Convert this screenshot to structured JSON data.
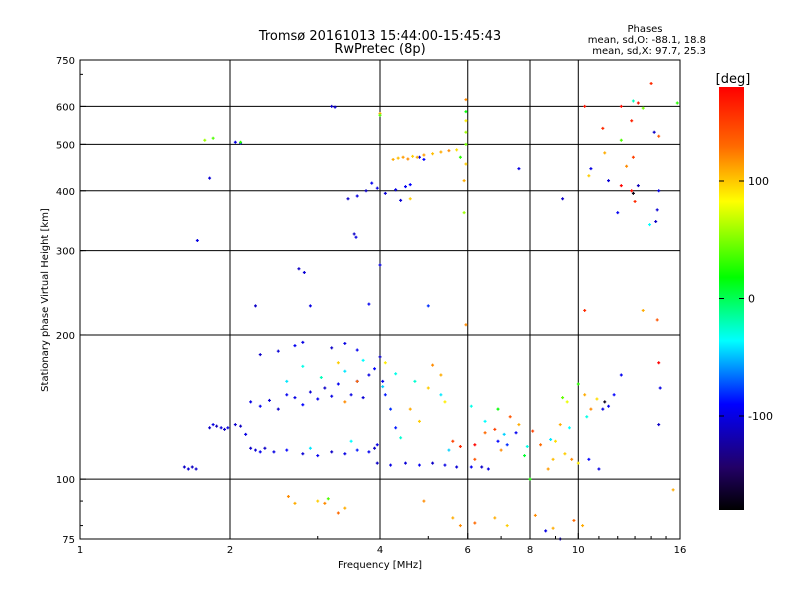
{
  "chart_data": {
    "type": "scatter",
    "title": "Tromsø 20161013 15:44:00-15:45:43",
    "subtitle": "RwPretec (8p)",
    "xlabel": "Frequency [MHz]",
    "ylabel": "Stationary phase Virtual Height [km]",
    "x_scale": "log",
    "y_scale": "log",
    "xlim": [
      1,
      16
    ],
    "ylim": [
      75,
      750
    ],
    "x_ticks": [
      1,
      2,
      4,
      6,
      8,
      10,
      16
    ],
    "x_tick_labels": [
      "1",
      "2",
      "4",
      "6",
      "8",
      "10",
      "16"
    ],
    "y_ticks": [
      75,
      100,
      200,
      300,
      400,
      500,
      600,
      750
    ],
    "y_tick_labels": [
      "75",
      "100",
      "200",
      "300",
      "400",
      "500",
      "600",
      "750"
    ],
    "grid": true,
    "stats": {
      "heading": "Phases",
      "line_o": "mean, sd,O: -88.1, 18.8",
      "line_x": "mean, sd,X:  97.7, 25.3"
    },
    "colorbar": {
      "label": "[deg]",
      "range": [
        -180,
        180
      ],
      "tick_values": [
        100,
        0,
        -100
      ],
      "tick_labels": [
        "100",
        "0",
        "-100"
      ],
      "colors": [
        "#ff0000",
        "#ff8000",
        "#ffff00",
        "#00ff00",
        "#00ffff",
        "#0000ff",
        "#1a0066",
        "#000000"
      ]
    },
    "series": [
      {
        "points": [
          [
            1.62,
            106,
            -110
          ],
          [
            1.65,
            105,
            -105
          ],
          [
            1.68,
            106,
            -112
          ],
          [
            1.71,
            105,
            -108
          ],
          [
            1.82,
            128,
            -110
          ],
          [
            1.85,
            130,
            -100
          ],
          [
            1.88,
            129,
            -115
          ],
          [
            1.92,
            128,
            -105
          ],
          [
            1.95,
            127,
            -110
          ],
          [
            1.98,
            128,
            -100
          ],
          [
            2.05,
            130,
            -108
          ],
          [
            2.1,
            129,
            -112
          ],
          [
            2.15,
            124,
            -100
          ],
          [
            2.2,
            116,
            -110
          ],
          [
            2.25,
            115,
            -105
          ],
          [
            2.3,
            114,
            -95
          ],
          [
            2.35,
            116,
            -110
          ],
          [
            2.45,
            114,
            -100
          ],
          [
            2.6,
            115,
            -90
          ],
          [
            2.8,
            113,
            -105
          ],
          [
            3.0,
            112,
            -95
          ],
          [
            3.2,
            114,
            -110
          ],
          [
            3.4,
            113,
            -100
          ],
          [
            3.6,
            115,
            -85
          ],
          [
            3.8,
            114,
            -95
          ],
          [
            3.9,
            116,
            -110
          ],
          [
            3.95,
            118,
            -100
          ],
          [
            2.2,
            145,
            -100
          ],
          [
            2.3,
            142,
            -95
          ],
          [
            2.4,
            146,
            -105
          ],
          [
            2.5,
            140,
            -110
          ],
          [
            2.6,
            150,
            -95
          ],
          [
            2.7,
            148,
            -100
          ],
          [
            2.8,
            143,
            -90
          ],
          [
            2.9,
            152,
            -105
          ],
          [
            3.0,
            147,
            -95
          ],
          [
            3.1,
            155,
            -110
          ],
          [
            3.2,
            149,
            -100
          ],
          [
            3.3,
            158,
            -95
          ],
          [
            3.5,
            150,
            -100
          ],
          [
            3.6,
            160,
            -90
          ],
          [
            3.7,
            148,
            -105
          ],
          [
            3.8,
            165,
            -100
          ],
          [
            2.3,
            182,
            -110
          ],
          [
            2.5,
            185,
            -105
          ],
          [
            2.7,
            190,
            -95
          ],
          [
            2.8,
            193,
            -100
          ],
          [
            3.2,
            188,
            -110
          ],
          [
            3.4,
            192,
            -100
          ],
          [
            3.6,
            186,
            -95
          ],
          [
            4.0,
            180,
            -110
          ],
          [
            3.9,
            170,
            -90
          ],
          [
            4.05,
            160,
            -95
          ],
          [
            4.1,
            150,
            -85
          ],
          [
            4.2,
            140,
            -80
          ],
          [
            4.3,
            128,
            -85
          ],
          [
            3.95,
            108,
            -110
          ],
          [
            4.2,
            107,
            -100
          ],
          [
            4.5,
            108,
            -105
          ],
          [
            4.8,
            107,
            -95
          ],
          [
            5.1,
            108,
            -110
          ],
          [
            5.4,
            107,
            -100
          ],
          [
            5.7,
            106,
            -105
          ],
          [
            6.1,
            106,
            -95
          ],
          [
            6.4,
            106,
            -110
          ],
          [
            6.6,
            105,
            -100
          ],
          [
            2.75,
            275,
            -110
          ],
          [
            2.82,
            270,
            -105
          ],
          [
            3.55,
            325,
            -110
          ],
          [
            3.58,
            320,
            -100
          ],
          [
            3.2,
            600,
            -110
          ],
          [
            3.25,
            598,
            -105
          ],
          [
            2.05,
            505,
            -100
          ],
          [
            2.1,
            503,
            -95
          ],
          [
            1.72,
            315,
            -100
          ],
          [
            1.82,
            425,
            -105
          ],
          [
            3.6,
            390,
            -100
          ],
          [
            3.75,
            400,
            -110
          ],
          [
            3.85,
            415,
            -95
          ],
          [
            3.95,
            405,
            -100
          ],
          [
            4.1,
            395,
            -105
          ],
          [
            4.3,
            402,
            -100
          ],
          [
            4.5,
            408,
            -95
          ],
          [
            4.6,
            412,
            -90
          ],
          [
            3.45,
            385,
            -110
          ],
          [
            4.4,
            382,
            -105
          ],
          [
            4.0,
            280,
            -100
          ],
          [
            2.25,
            230,
            -110
          ],
          [
            2.9,
            230,
            -100
          ],
          [
            3.8,
            232,
            -95
          ],
          [
            5.0,
            230,
            -80
          ],
          [
            6.9,
            120,
            -90
          ],
          [
            7.2,
            118,
            -80
          ],
          [
            7.5,
            125,
            -95
          ],
          [
            11.2,
            140,
            -100
          ],
          [
            11.5,
            142,
            -95
          ],
          [
            11.8,
            150,
            -90
          ],
          [
            12.2,
            165,
            -95
          ],
          [
            10.5,
            110,
            -90
          ],
          [
            11.0,
            105,
            -100
          ],
          [
            14.5,
            130,
            -110
          ],
          [
            14.6,
            155,
            -100
          ],
          [
            14.3,
            345,
            -110
          ],
          [
            14.4,
            365,
            -105
          ],
          [
            14.5,
            400,
            -100
          ],
          [
            14.2,
            530,
            -110
          ],
          [
            13.2,
            410,
            -115
          ],
          [
            12.0,
            360,
            -95
          ],
          [
            11.5,
            420,
            -105
          ],
          [
            10.6,
            445,
            -100
          ],
          [
            9.3,
            385,
            -110
          ],
          [
            7.6,
            445,
            -100
          ],
          [
            4.8,
            470,
            -100
          ],
          [
            4.9,
            465,
            -90
          ],
          [
            9.2,
            75,
            -110
          ],
          [
            8.6,
            78,
            -100
          ]
        ]
      },
      {
        "points": [
          [
            4.25,
            465,
            110
          ],
          [
            4.35,
            468,
            105
          ],
          [
            4.45,
            470,
            115
          ],
          [
            4.55,
            466,
            120
          ],
          [
            4.65,
            472,
            100
          ],
          [
            4.75,
            470,
            110
          ],
          [
            4.9,
            475,
            115
          ],
          [
            5.1,
            478,
            105
          ],
          [
            5.3,
            482,
            110
          ],
          [
            5.5,
            485,
            120
          ],
          [
            5.7,
            487,
            95
          ],
          [
            4.6,
            385,
            100
          ],
          [
            4.0,
            580,
            110
          ],
          [
            5.95,
            620,
            120
          ],
          [
            5.95,
            560,
            90
          ],
          [
            5.95,
            530,
            60
          ],
          [
            5.95,
            455,
            100
          ],
          [
            5.9,
            420,
            110
          ],
          [
            5.9,
            360,
            60
          ],
          [
            5.95,
            210,
            120
          ],
          [
            9.5,
            145,
            80
          ],
          [
            9.2,
            130,
            110
          ],
          [
            9.0,
            120,
            95
          ],
          [
            8.9,
            110,
            105
          ],
          [
            8.7,
            105,
            115
          ],
          [
            9.4,
            113,
            100
          ],
          [
            9.7,
            110,
            120
          ],
          [
            10.0,
            108,
            90
          ],
          [
            10.3,
            150,
            110
          ],
          [
            10.6,
            140,
            120
          ],
          [
            10.9,
            147,
            95
          ],
          [
            5.6,
            120,
            150
          ],
          [
            5.8,
            117,
            160
          ],
          [
            6.2,
            110,
            140
          ],
          [
            6.5,
            125,
            130
          ],
          [
            6.8,
            127,
            150
          ],
          [
            7.0,
            115,
            120
          ],
          [
            7.3,
            135,
            140
          ],
          [
            7.6,
            130,
            110
          ],
          [
            8.1,
            126,
            150
          ],
          [
            8.4,
            118,
            130
          ],
          [
            5.0,
            155,
            100
          ],
          [
            5.3,
            165,
            110
          ],
          [
            5.1,
            173,
            120
          ],
          [
            5.4,
            145,
            90
          ],
          [
            4.6,
            140,
            110
          ],
          [
            4.8,
            132,
            100
          ],
          [
            2.62,
            92,
            120
          ],
          [
            2.7,
            89,
            110
          ],
          [
            3.0,
            90,
            100
          ],
          [
            3.1,
            89,
            120
          ],
          [
            3.3,
            85,
            130
          ],
          [
            3.4,
            87,
            110
          ],
          [
            4.9,
            90,
            120
          ],
          [
            5.6,
            83,
            110
          ],
          [
            5.8,
            80,
            120
          ],
          [
            6.2,
            81,
            130
          ],
          [
            6.8,
            83,
            110
          ],
          [
            7.2,
            80,
            100
          ],
          [
            8.2,
            84,
            120
          ],
          [
            8.9,
            79,
            110
          ],
          [
            9.8,
            82,
            130
          ],
          [
            10.2,
            80,
            110
          ],
          [
            10.3,
            600,
            170
          ],
          [
            11.2,
            540,
            160
          ],
          [
            12.2,
            600,
            175
          ],
          [
            12.8,
            560,
            165
          ],
          [
            13.2,
            610,
            170
          ],
          [
            14.0,
            670,
            160
          ],
          [
            12.5,
            450,
            120
          ],
          [
            11.3,
            480,
            110
          ],
          [
            10.5,
            430,
            100
          ],
          [
            13.0,
            380,
            160
          ],
          [
            12.9,
            470,
            150
          ],
          [
            14.5,
            520,
            140
          ],
          [
            13.5,
            225,
            110
          ],
          [
            14.4,
            215,
            140
          ],
          [
            10.3,
            225,
            160
          ],
          [
            15.5,
            95,
            110
          ],
          [
            3.4,
            145,
            120
          ],
          [
            3.6,
            160,
            130
          ],
          [
            3.3,
            175,
            100
          ],
          [
            4.1,
            175,
            90
          ]
        ]
      },
      {
        "points": [
          [
            1.78,
            510,
            60
          ],
          [
            1.85,
            515,
            40
          ],
          [
            2.1,
            505,
            30
          ],
          [
            5.95,
            585,
            20
          ],
          [
            5.95,
            500,
            50
          ],
          [
            4.0,
            575,
            40
          ],
          [
            5.8,
            470,
            30
          ],
          [
            6.9,
            140,
            20
          ],
          [
            7.8,
            112,
            10
          ],
          [
            8.0,
            100,
            25
          ],
          [
            9.3,
            148,
            45
          ],
          [
            10.0,
            158,
            30
          ],
          [
            12.2,
            510,
            40
          ],
          [
            13.5,
            595,
            50
          ],
          [
            15.8,
            610,
            30
          ],
          [
            3.15,
            91,
            40
          ]
        ]
      },
      {
        "points": [
          [
            2.6,
            160,
            -40
          ],
          [
            2.8,
            172,
            -30
          ],
          [
            3.05,
            163,
            -20
          ],
          [
            3.4,
            168,
            -40
          ],
          [
            3.7,
            177,
            -35
          ],
          [
            4.05,
            156,
            -45
          ],
          [
            4.3,
            166,
            -30
          ],
          [
            4.7,
            160,
            -25
          ],
          [
            5.3,
            150,
            -40
          ],
          [
            6.1,
            142,
            -30
          ],
          [
            6.5,
            132,
            -35
          ],
          [
            7.1,
            124,
            -45
          ],
          [
            7.9,
            117,
            -30
          ],
          [
            8.8,
            121,
            -40
          ],
          [
            9.6,
            128,
            -35
          ],
          [
            10.4,
            135,
            -30
          ],
          [
            12.9,
            616,
            -20
          ],
          [
            13.9,
            340,
            -35
          ],
          [
            2.9,
            116,
            -40
          ],
          [
            3.5,
            120,
            -35
          ],
          [
            4.4,
            122,
            -25
          ],
          [
            5.5,
            115,
            -45
          ]
        ]
      },
      {
        "points": [
          [
            12.8,
            400,
            175
          ],
          [
            12.9,
            395,
            -175
          ],
          [
            14.5,
            175,
            180
          ],
          [
            11.3,
            145,
            -170
          ],
          [
            12.2,
            410,
            178
          ],
          [
            6.2,
            118,
            178
          ]
        ]
      }
    ]
  }
}
